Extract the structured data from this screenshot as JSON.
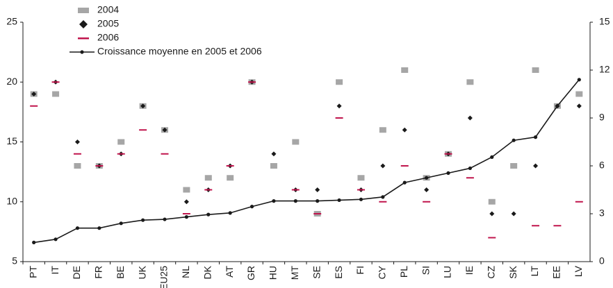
{
  "chart_data": {
    "type": "dot_line",
    "categories": [
      "PT",
      "IT",
      "DE",
      "FR",
      "BE",
      "UK",
      "EU25",
      "NL",
      "DK",
      "AT",
      "GR",
      "HU",
      "MT",
      "SE",
      "ES",
      "FI",
      "CY",
      "PL",
      "SI",
      "LU",
      "IE",
      "CZ",
      "SK",
      "LT",
      "EE",
      "LV"
    ],
    "series": [
      {
        "name": "2004",
        "color": "#a6a6a6",
        "marker": "square",
        "values": [
          19,
          19,
          13,
          13,
          15,
          18,
          16,
          11,
          12,
          12,
          20,
          13,
          15,
          9,
          20,
          12,
          16,
          21,
          12,
          14,
          20,
          10,
          13,
          21,
          18,
          19
        ]
      },
      {
        "name": "2005",
        "color": "#1a1a1a",
        "marker": "diamond",
        "values": [
          19,
          20,
          15,
          13,
          14,
          18,
          16,
          10,
          11,
          13,
          20,
          14,
          11,
          11,
          18,
          11,
          13,
          16,
          11,
          14,
          17,
          9,
          9,
          13,
          18,
          18
        ]
      },
      {
        "name": "2006",
        "color": "#c0144c",
        "marker": "dash",
        "values": [
          18,
          20,
          14,
          13,
          14,
          16,
          14,
          9,
          11,
          13,
          20,
          null,
          11,
          9,
          17,
          11,
          10,
          13,
          10,
          14,
          12,
          7,
          null,
          8,
          8,
          10
        ]
      },
      {
        "name": "Croissance moyenne en 2005 et 2006",
        "color": "#1a1a1a",
        "marker": "line",
        "axis": "y2",
        "values": [
          1.2,
          1.4,
          2.1,
          2.1,
          2.4,
          2.6,
          2.65,
          2.8,
          2.95,
          3.05,
          3.45,
          3.8,
          3.8,
          3.8,
          3.85,
          3.9,
          4.05,
          4.95,
          5.25,
          5.55,
          5.85,
          6.55,
          7.6,
          7.8,
          9.75,
          11.4
        ]
      }
    ],
    "ylim": [
      5,
      25
    ],
    "yticks": [
      5,
      10,
      15,
      20,
      25
    ],
    "y2lim": [
      0,
      15
    ],
    "y2ticks": [
      0,
      3,
      6,
      9,
      12,
      15
    ],
    "grid": false
  }
}
